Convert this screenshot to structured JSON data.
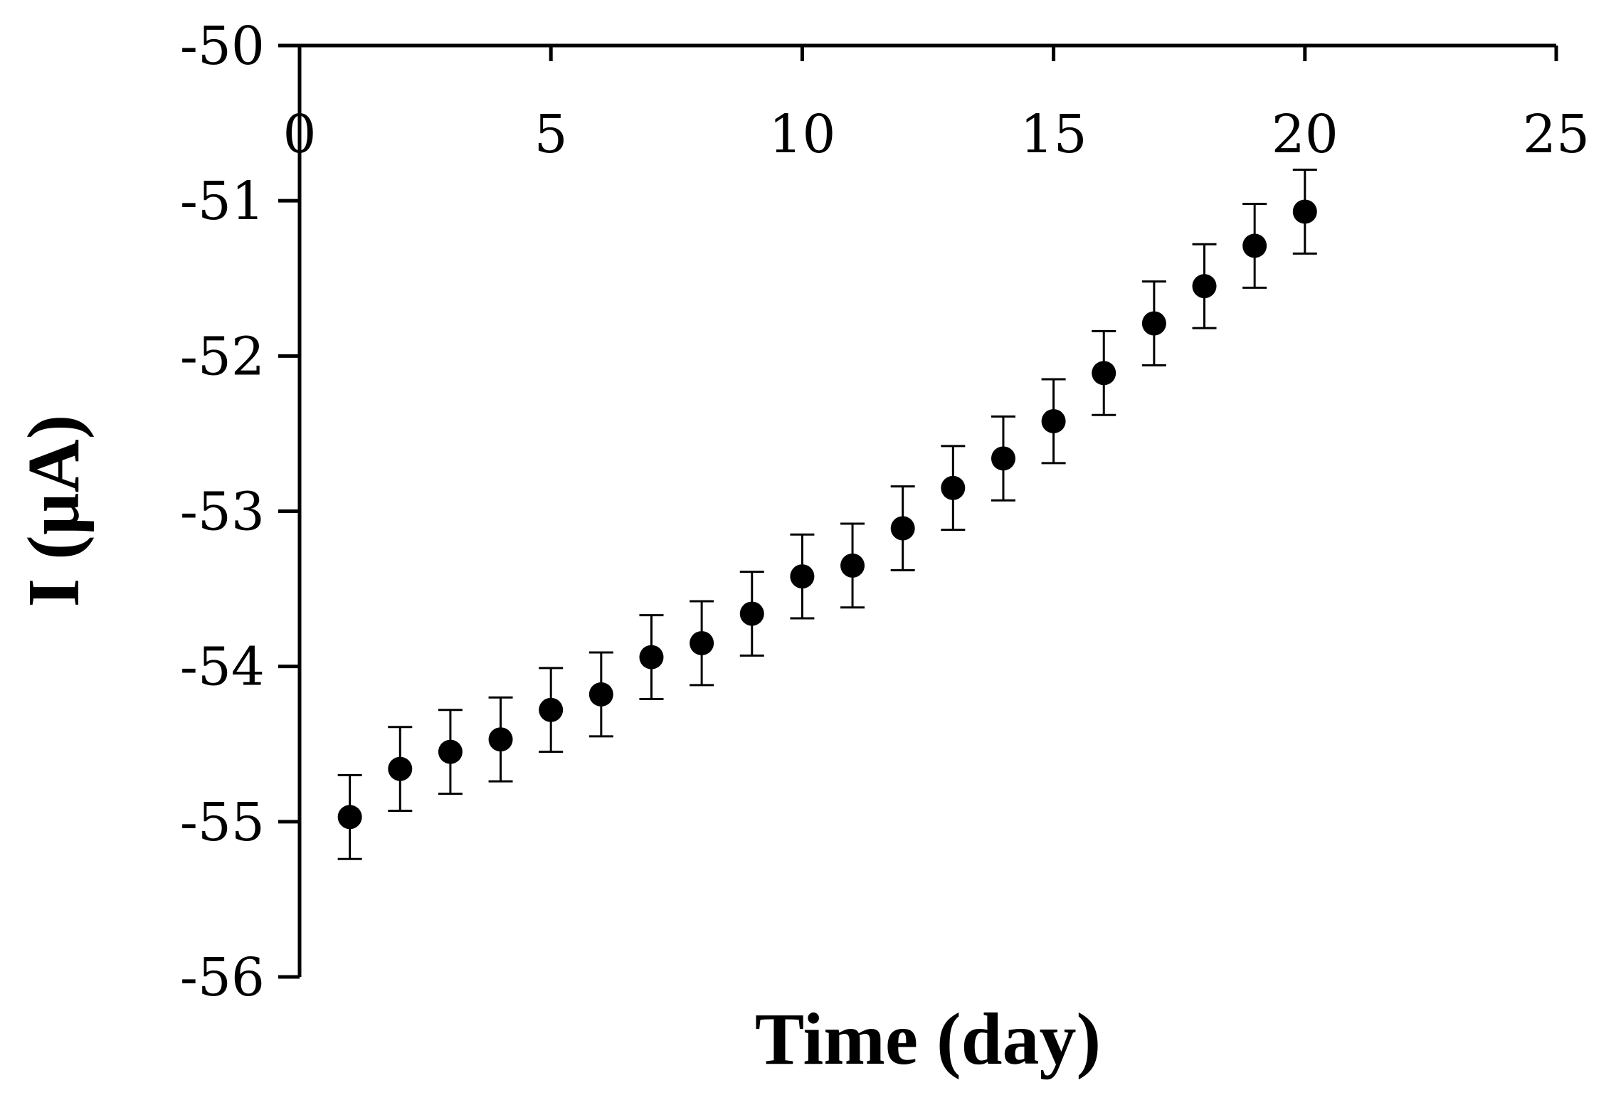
{
  "chart_data": {
    "type": "scatter",
    "title": "",
    "xlabel": "Time (day)",
    "ylabel": "I (µA)",
    "xlim": [
      0,
      25
    ],
    "ylim": [
      -56,
      -50
    ],
    "x_ticks": [
      "0",
      "5",
      "10",
      "15",
      "20",
      "25"
    ],
    "y_ticks": [
      "-50",
      "-51",
      "-52",
      "-53",
      "-54",
      "-55",
      "-56"
    ],
    "grid": false,
    "legend": "none",
    "marker_color": "#000000",
    "series": [
      {
        "x": [
          1,
          2,
          3,
          4,
          5,
          6,
          7,
          8,
          9,
          10,
          11,
          12,
          13,
          14,
          15,
          16,
          17,
          18,
          19,
          20
        ],
        "y": [
          -54.97,
          -54.66,
          -54.55,
          -54.47,
          -54.28,
          -54.18,
          -53.94,
          -53.85,
          -53.66,
          -53.42,
          -53.35,
          -53.11,
          -52.85,
          -52.66,
          -52.42,
          -52.11,
          -51.79,
          -51.55,
          -51.29,
          -51.07
        ],
        "error": [
          0.27,
          0.27,
          0.27,
          0.27,
          0.27,
          0.27,
          0.27,
          0.27,
          0.27,
          0.27,
          0.27,
          0.27,
          0.27,
          0.27,
          0.27,
          0.27,
          0.27,
          0.27,
          0.27,
          0.27
        ]
      }
    ]
  }
}
